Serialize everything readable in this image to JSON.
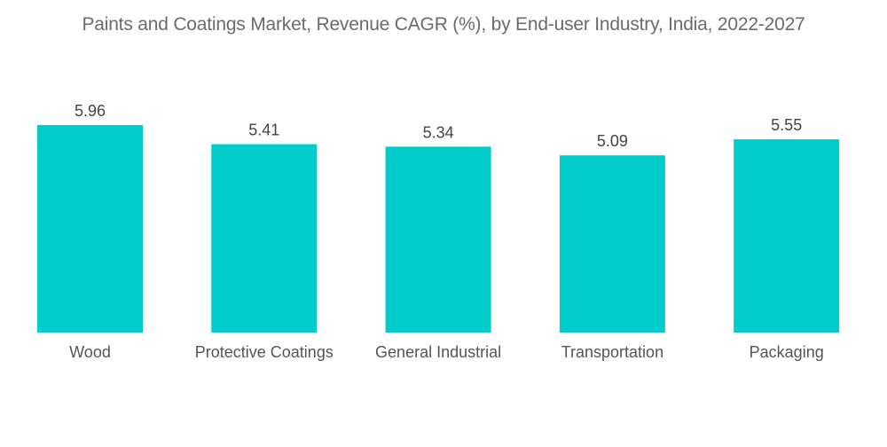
{
  "chart_data": {
    "type": "bar",
    "title": "Paints and Coatings Market, Revenue CAGR (%), by End-user Industry, India, 2022-2027",
    "categories": [
      "Wood",
      "Protective Coatings",
      "General Industrial",
      "Transportation",
      "Packaging"
    ],
    "values": [
      5.96,
      5.41,
      5.34,
      5.09,
      5.55
    ],
    "value_labels": [
      "5.96",
      "5.41",
      "5.34",
      "5.09",
      "5.55"
    ],
    "xlabel": "",
    "ylabel": "",
    "ylim": [
      0,
      5.96
    ],
    "grid": false,
    "legend": "none",
    "bar_color": "#00CCCC"
  }
}
